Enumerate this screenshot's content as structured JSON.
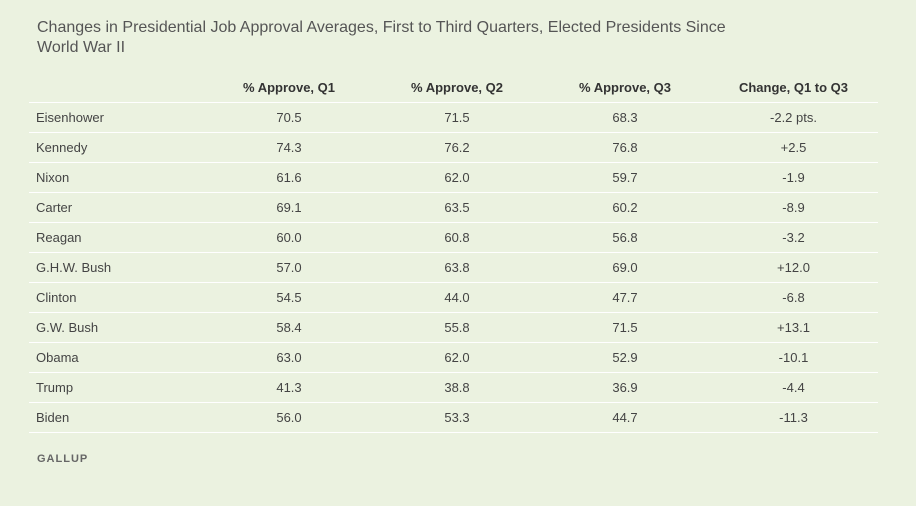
{
  "chart_data": {
    "type": "table",
    "title": "Changes in Presidential Job Approval Averages, First to Third Quarters, Elected Presidents Since World War II",
    "columns": [
      "",
      "% Approve, Q1",
      "% Approve, Q2",
      "% Approve, Q3",
      "Change, Q1 to Q3"
    ],
    "rows": [
      {
        "president": "Eisenhower",
        "q1": "70.5",
        "q2": "71.5",
        "q3": "68.3",
        "change": "-2.2 pts."
      },
      {
        "president": "Kennedy",
        "q1": "74.3",
        "q2": "76.2",
        "q3": "76.8",
        "change": "+2.5"
      },
      {
        "president": "Nixon",
        "q1": "61.6",
        "q2": "62.0",
        "q3": "59.7",
        "change": "-1.9"
      },
      {
        "president": "Carter",
        "q1": "69.1",
        "q2": "63.5",
        "q3": "60.2",
        "change": "-8.9"
      },
      {
        "president": "Reagan",
        "q1": "60.0",
        "q2": "60.8",
        "q3": "56.8",
        "change": "-3.2"
      },
      {
        "president": "G.H.W. Bush",
        "q1": "57.0",
        "q2": "63.8",
        "q3": "69.0",
        "change": "+12.0"
      },
      {
        "president": "Clinton",
        "q1": "54.5",
        "q2": "44.0",
        "q3": "47.7",
        "change": "-6.8"
      },
      {
        "president": "G.W. Bush",
        "q1": "58.4",
        "q2": "55.8",
        "q3": "71.5",
        "change": "+13.1"
      },
      {
        "president": "Obama",
        "q1": "63.0",
        "q2": "62.0",
        "q3": "52.9",
        "change": "-10.1"
      },
      {
        "president": "Trump",
        "q1": "41.3",
        "q2": "38.8",
        "q3": "36.9",
        "change": "-4.4"
      },
      {
        "president": "Biden",
        "q1": "56.0",
        "q2": "53.3",
        "q3": "44.7",
        "change": "-11.3"
      }
    ]
  },
  "source": {
    "brand": "GALLUP"
  },
  "colors": {
    "background": "#ebf2e0",
    "row_divider": "#ffffff"
  }
}
